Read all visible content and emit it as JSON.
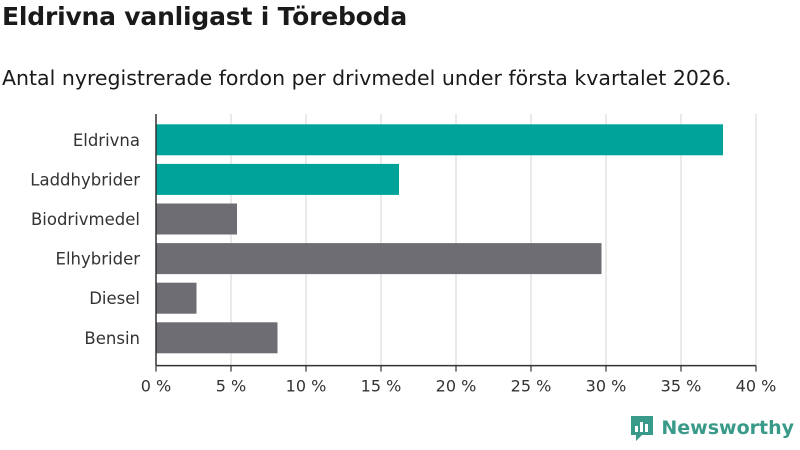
{
  "title": "Eldrivna vanligast i Töreboda",
  "subtitle": "Antal nyregistrerade fordon per drivmedel under första kvartalet 2026.",
  "brand": {
    "name": "Newsworthy",
    "color": "#3a9a8a"
  },
  "colors": {
    "highlight": "#00a39a",
    "default": "#6e6d73",
    "grid": "#dddddd",
    "axis": "#333333"
  },
  "chart_data": {
    "type": "bar",
    "orientation": "horizontal",
    "categories": [
      "Eldrivna",
      "Laddhybrider",
      "Biodrivmedel",
      "Elhybrider",
      "Diesel",
      "Bensin"
    ],
    "values": [
      37.8,
      16.2,
      5.4,
      29.7,
      2.7,
      8.1
    ],
    "highlighted": [
      "Eldrivna",
      "Laddhybrider"
    ],
    "xlim": [
      0,
      40
    ],
    "xticks": [
      0,
      5,
      10,
      15,
      20,
      25,
      30,
      35,
      40
    ],
    "xtick_labels": [
      "0 %",
      "5 %",
      "10 %",
      "15 %",
      "20 %",
      "25 %",
      "30 %",
      "35 %",
      "40 %"
    ],
    "xlabel": "",
    "ylabel": "",
    "grid": true
  }
}
